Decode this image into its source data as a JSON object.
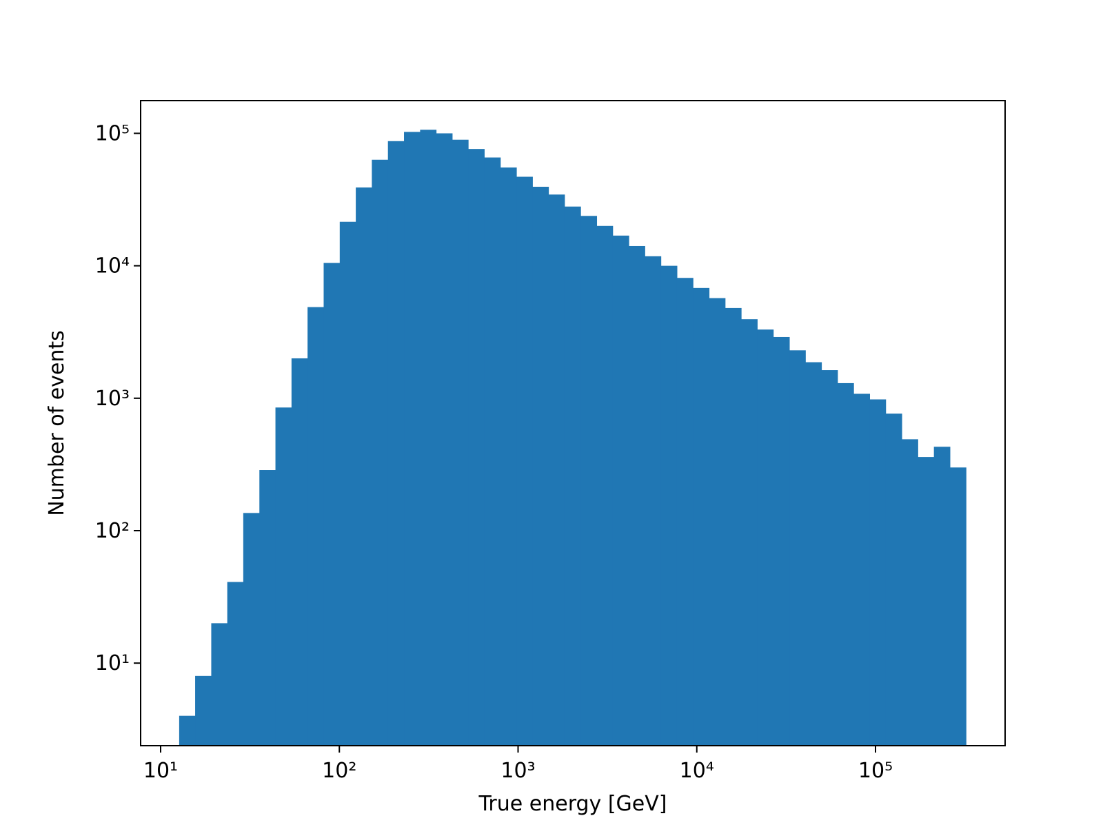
{
  "chart_data": {
    "type": "histogram",
    "xlabel": "True energy [GeV]",
    "ylabel": "Number of events",
    "xscale": "log",
    "yscale": "log",
    "color": "#2077b4",
    "bins": [
      12.7,
      15.6,
      19.2,
      23.6,
      29.0,
      35.7,
      43.9,
      54.0,
      66.4,
      81.7,
      100.5,
      123.6,
      152,
      187,
      230,
      283,
      348,
      428,
      526,
      647,
      796,
      979,
      1204,
      1480,
      1820,
      2238,
      2753,
      3385,
      4164,
      5120,
      6297,
      7745,
      9524,
      11714,
      14405,
      17717,
      21788,
      26797,
      32954,
      40530,
      49840,
      61300,
      75390,
      92720,
      114000,
      140250,
      172480,
      212140,
      260890,
      320850
    ],
    "values": [
      4,
      8,
      20,
      41,
      136,
      287,
      851,
      2000,
      4875,
      10500,
      21500,
      39000,
      63200,
      87300,
      102500,
      106400,
      100000,
      89500,
      76200,
      65700,
      55200,
      47000,
      39500,
      34500,
      28000,
      23800,
      20000,
      16900,
      14100,
      11800,
      10000,
      8100,
      6800,
      5700,
      4800,
      3950,
      3300,
      2900,
      2300,
      1870,
      1630,
      1300,
      1080,
      980,
      765,
      490,
      360,
      430,
      300
    ],
    "xlim": [
      7.73,
      531000
    ],
    "ylim": [
      2.38,
      176600
    ],
    "xticks": [
      {
        "value": 10,
        "label": "10¹"
      },
      {
        "value": 100,
        "label": "10²"
      },
      {
        "value": 1000,
        "label": "10³"
      },
      {
        "value": 10000,
        "label": "10⁴"
      },
      {
        "value": 100000,
        "label": "10⁵"
      }
    ],
    "yticks": [
      {
        "value": 10,
        "label": "10¹"
      },
      {
        "value": 100,
        "label": "10²"
      },
      {
        "value": 1000,
        "label": "10³"
      },
      {
        "value": 10000,
        "label": "10⁴"
      },
      {
        "value": 100000,
        "label": "10⁵"
      }
    ]
  }
}
